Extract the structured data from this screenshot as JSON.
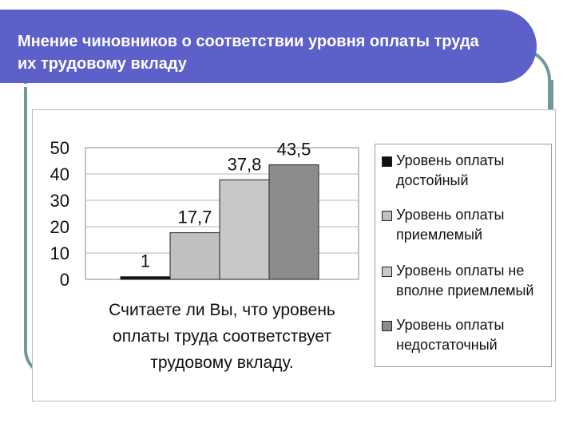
{
  "header": {
    "title": "Мнение чиновников о соответствии уровня оплаты труда их трудовому вкладу"
  },
  "chart_data": {
    "type": "bar",
    "categories": [
      "Уровень оплаты достойный",
      "Уровень оплаты приемлемый",
      "Уровень оплаты не вполне приемлемый",
      "Уровень оплаты недостаточный"
    ],
    "values": [
      1,
      17.7,
      37.8,
      43.5
    ],
    "value_labels": [
      "1",
      "17,7",
      "37,8",
      "43,5"
    ],
    "colors": [
      "#111111",
      "#c0c0c0",
      "#c8c8c8",
      "#8c8c8c"
    ],
    "y_ticks": [
      "0",
      "10",
      "20",
      "30",
      "40",
      "50"
    ],
    "ylim": [
      0,
      50
    ],
    "grid": true,
    "xlabel_lines": [
      "Считаете ли Вы, что уровень",
      "оплаты труда соответствует",
      "трудовому вкладу."
    ],
    "legend_position": "right",
    "legend": [
      {
        "lines": [
          "Уровень оплаты",
          "достойный"
        ],
        "color": "#111111"
      },
      {
        "lines": [
          "Уровень оплаты",
          "приемлемый"
        ],
        "color": "#c0c0c0"
      },
      {
        "lines": [
          "Уровень оплаты не",
          "вполне приемлемый"
        ],
        "color": "#c8c8c8"
      },
      {
        "lines": [
          "Уровень оплаты",
          "недостаточный"
        ],
        "color": "#8c8c8c"
      }
    ]
  }
}
